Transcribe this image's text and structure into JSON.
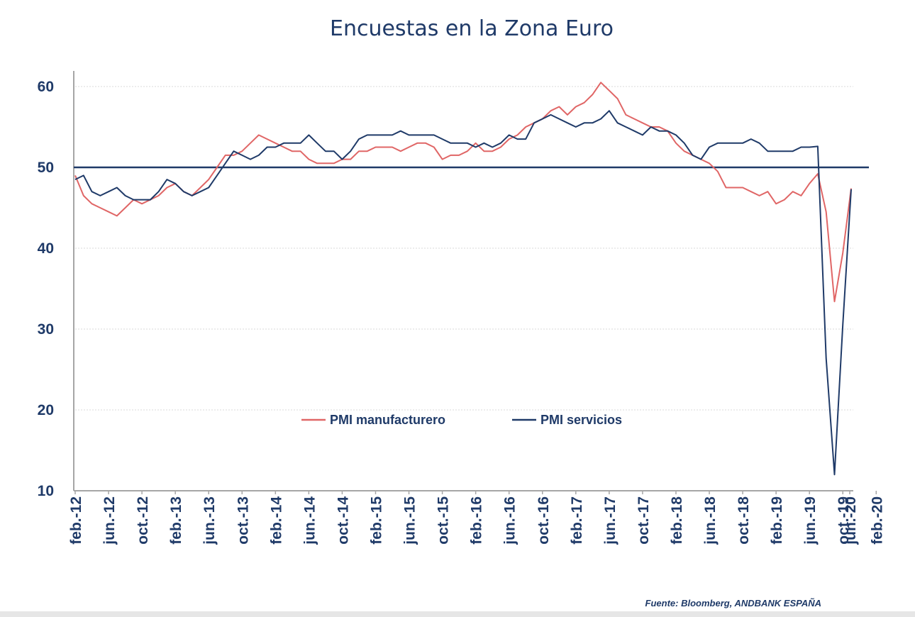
{
  "chart_data": {
    "type": "line",
    "title": "Encuestas en la Zona Euro",
    "xlabel": "",
    "ylabel": "",
    "ylim": [
      10,
      62
    ],
    "yticks": [
      10,
      20,
      30,
      40,
      50,
      60
    ],
    "x_start": "feb.-12",
    "x_tick_labels": [
      "feb.-12",
      "jun.-12",
      "oct.-12",
      "feb.-13",
      "jun.-13",
      "oct.-13",
      "feb.-14",
      "jun.-14",
      "oct.-14",
      "feb.-15",
      "jun.-15",
      "oct.-15",
      "feb.-16",
      "jun.-16",
      "oct.-16",
      "feb.-17",
      "jun.-17",
      "oct.-17",
      "feb.-18",
      "jun.-18",
      "oct.-18",
      "feb.-19",
      "jun.-19",
      "oct.-19",
      "feb.-20",
      "jun.-20"
    ],
    "reference_line": 50,
    "grid": true,
    "legend_position": "bottom-center",
    "series": [
      {
        "name": "PMI manufacturero",
        "color": "#e06666",
        "values": [
          49.0,
          46.5,
          45.5,
          45.0,
          44.5,
          44.0,
          45.0,
          46.0,
          45.5,
          46.0,
          46.5,
          47.5,
          48.0,
          47.0,
          46.5,
          47.5,
          48.5,
          50.0,
          51.5,
          51.5,
          52.0,
          53.0,
          54.0,
          53.5,
          53.0,
          52.5,
          52.0,
          52.0,
          51.0,
          50.5,
          50.5,
          50.5,
          51.0,
          51.0,
          52.0,
          52.0,
          52.5,
          52.5,
          52.5,
          52.0,
          52.5,
          53.0,
          53.0,
          52.5,
          51.0,
          51.5,
          51.5,
          52.0,
          53.0,
          52.0,
          52.0,
          52.5,
          53.5,
          54.0,
          55.0,
          55.5,
          56.0,
          57.0,
          57.5,
          56.5,
          57.5,
          58.0,
          59.0,
          60.5,
          59.5,
          58.5,
          56.5,
          56.0,
          55.5,
          55.0,
          55.0,
          54.5,
          53.0,
          52.0,
          51.5,
          51.0,
          50.5,
          49.5,
          47.5,
          47.5,
          47.5,
          47.0,
          46.5,
          47.0,
          45.5,
          46.0,
          47.0,
          46.5,
          48.0,
          49.2,
          44.5,
          33.4,
          39.4,
          47.4
        ]
      },
      {
        "name": "PMI servicios",
        "color": "#1f3a68",
        "values": [
          48.5,
          49.0,
          47.0,
          46.5,
          47.0,
          47.5,
          46.5,
          46.0,
          46.0,
          46.0,
          47.0,
          48.5,
          48.0,
          47.0,
          46.5,
          47.0,
          47.5,
          49.0,
          50.5,
          52.0,
          51.5,
          51.0,
          51.5,
          52.5,
          52.5,
          53.0,
          53.0,
          53.0,
          54.0,
          53.0,
          52.0,
          52.0,
          51.0,
          52.0,
          53.5,
          54.0,
          54.0,
          54.0,
          54.0,
          54.5,
          54.0,
          54.0,
          54.0,
          54.0,
          53.5,
          53.0,
          53.0,
          53.0,
          52.5,
          53.0,
          52.5,
          53.0,
          54.0,
          53.5,
          53.5,
          55.5,
          56.0,
          56.5,
          56.0,
          55.5,
          55.0,
          55.5,
          55.5,
          56.0,
          57.0,
          55.5,
          55.0,
          54.5,
          54.0,
          55.0,
          54.5,
          54.5,
          54.0,
          53.0,
          51.5,
          51.0,
          52.5,
          53.0,
          53.0,
          53.0,
          53.0,
          53.5,
          53.0,
          52.0,
          52.0,
          52.0,
          52.0,
          52.5,
          52.5,
          52.6,
          26.4,
          12.0,
          30.5,
          47.3
        ]
      }
    ],
    "source": "Fuente: Bloomberg, ANDBANK ESPAÑA"
  }
}
